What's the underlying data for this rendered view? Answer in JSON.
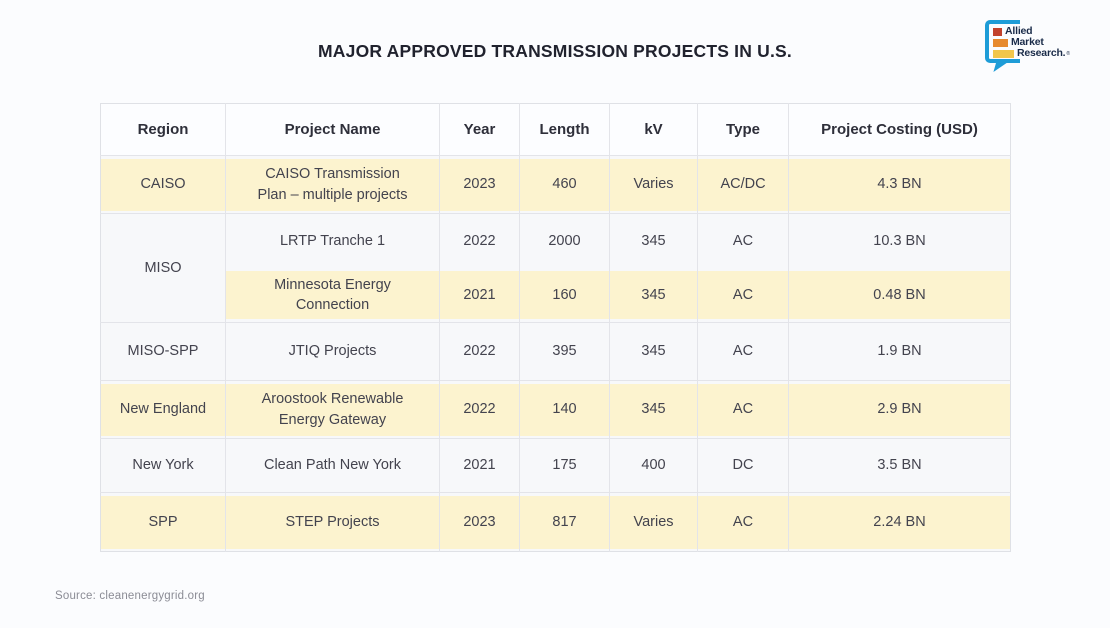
{
  "page": {
    "title": "MAJOR APPROVED TRANSMISSION PROJECTS IN U.S.",
    "source": "Source: cleanenergygrid.org"
  },
  "logo": {
    "name": "Allied Market Research",
    "lines": [
      "Allied",
      "Market",
      "Research."
    ],
    "mark": "®",
    "colors": {
      "bubble": "#1e9cd7",
      "bar_red": "#c2412c",
      "bar_orange": "#e78a2e",
      "bar_yellow": "#f1c64b",
      "text": "#1a2b49"
    }
  },
  "table": {
    "headers": [
      "Region",
      "Project Name",
      "Year",
      "Length",
      "kV",
      "Type",
      "Project Costing (USD)"
    ],
    "highlight_color": "#FCF3CF",
    "rows": [
      {
        "region": "CAISO",
        "region_rowspan": 1,
        "project": "CAISO Transmission\nPlan – multiple projects",
        "year": "2023",
        "length": "460",
        "kv": "Varies",
        "type": "AC/DC",
        "cost": "4.3 BN",
        "highlight": true
      },
      {
        "region": "MISO",
        "region_rowspan": 2,
        "project": "LRTP Tranche 1",
        "year": "2022",
        "length": "2000",
        "kv": "345",
        "type": "AC",
        "cost": "10.3 BN",
        "highlight": false
      },
      {
        "region": null,
        "project": "Minnesota Energy\nConnection",
        "year": "2021",
        "length": "160",
        "kv": "345",
        "type": "AC",
        "cost": "0.48 BN",
        "highlight": true,
        "no_top_border": true
      },
      {
        "region": "MISO-SPP",
        "region_rowspan": 1,
        "project": "JTIQ Projects",
        "year": "2022",
        "length": "395",
        "kv": "345",
        "type": "AC",
        "cost": "1.9 BN",
        "highlight": false
      },
      {
        "region": "New England",
        "region_rowspan": 1,
        "project": "Aroostook Renewable\nEnergy Gateway",
        "year": "2022",
        "length": "140",
        "kv": "345",
        "type": "AC",
        "cost": "2.9 BN",
        "highlight": true
      },
      {
        "region": "New York",
        "region_rowspan": 1,
        "project": "Clean Path New York",
        "year": "2021",
        "length": "175",
        "kv": "400",
        "type": "DC",
        "cost": "3.5 BN",
        "highlight": false
      },
      {
        "region": "SPP",
        "region_rowspan": 1,
        "project": "STEP Projects",
        "year": "2023",
        "length": "817",
        "kv": "Varies",
        "type": "AC",
        "cost": "2.24 BN",
        "highlight": true
      }
    ]
  },
  "chart_data": {
    "type": "table",
    "title": "MAJOR APPROVED TRANSMISSION PROJECTS IN U.S.",
    "columns": [
      "Region",
      "Project Name",
      "Year",
      "Length",
      "kV",
      "Type",
      "Project Costing (USD)"
    ],
    "rows": [
      [
        "CAISO",
        "CAISO Transmission Plan – multiple projects",
        2023,
        460,
        "Varies",
        "AC/DC",
        "4.3 BN"
      ],
      [
        "MISO",
        "LRTP Tranche 1",
        2022,
        2000,
        345,
        "AC",
        "10.3 BN"
      ],
      [
        "MISO",
        "Minnesota Energy Connection",
        2021,
        160,
        345,
        "AC",
        "0.48 BN"
      ],
      [
        "MISO-SPP",
        "JTIQ Projects",
        2022,
        395,
        345,
        "AC",
        "1.9 BN"
      ],
      [
        "New England",
        "Aroostook Renewable Energy Gateway",
        2022,
        140,
        345,
        "AC",
        "2.9 BN"
      ],
      [
        "New York",
        "Clean Path New York",
        2021,
        175,
        400,
        "DC",
        "3.5 BN"
      ],
      [
        "SPP",
        "STEP Projects",
        2023,
        817,
        "Varies",
        "AC",
        "2.24 BN"
      ]
    ],
    "source": "cleanenergygrid.org"
  }
}
